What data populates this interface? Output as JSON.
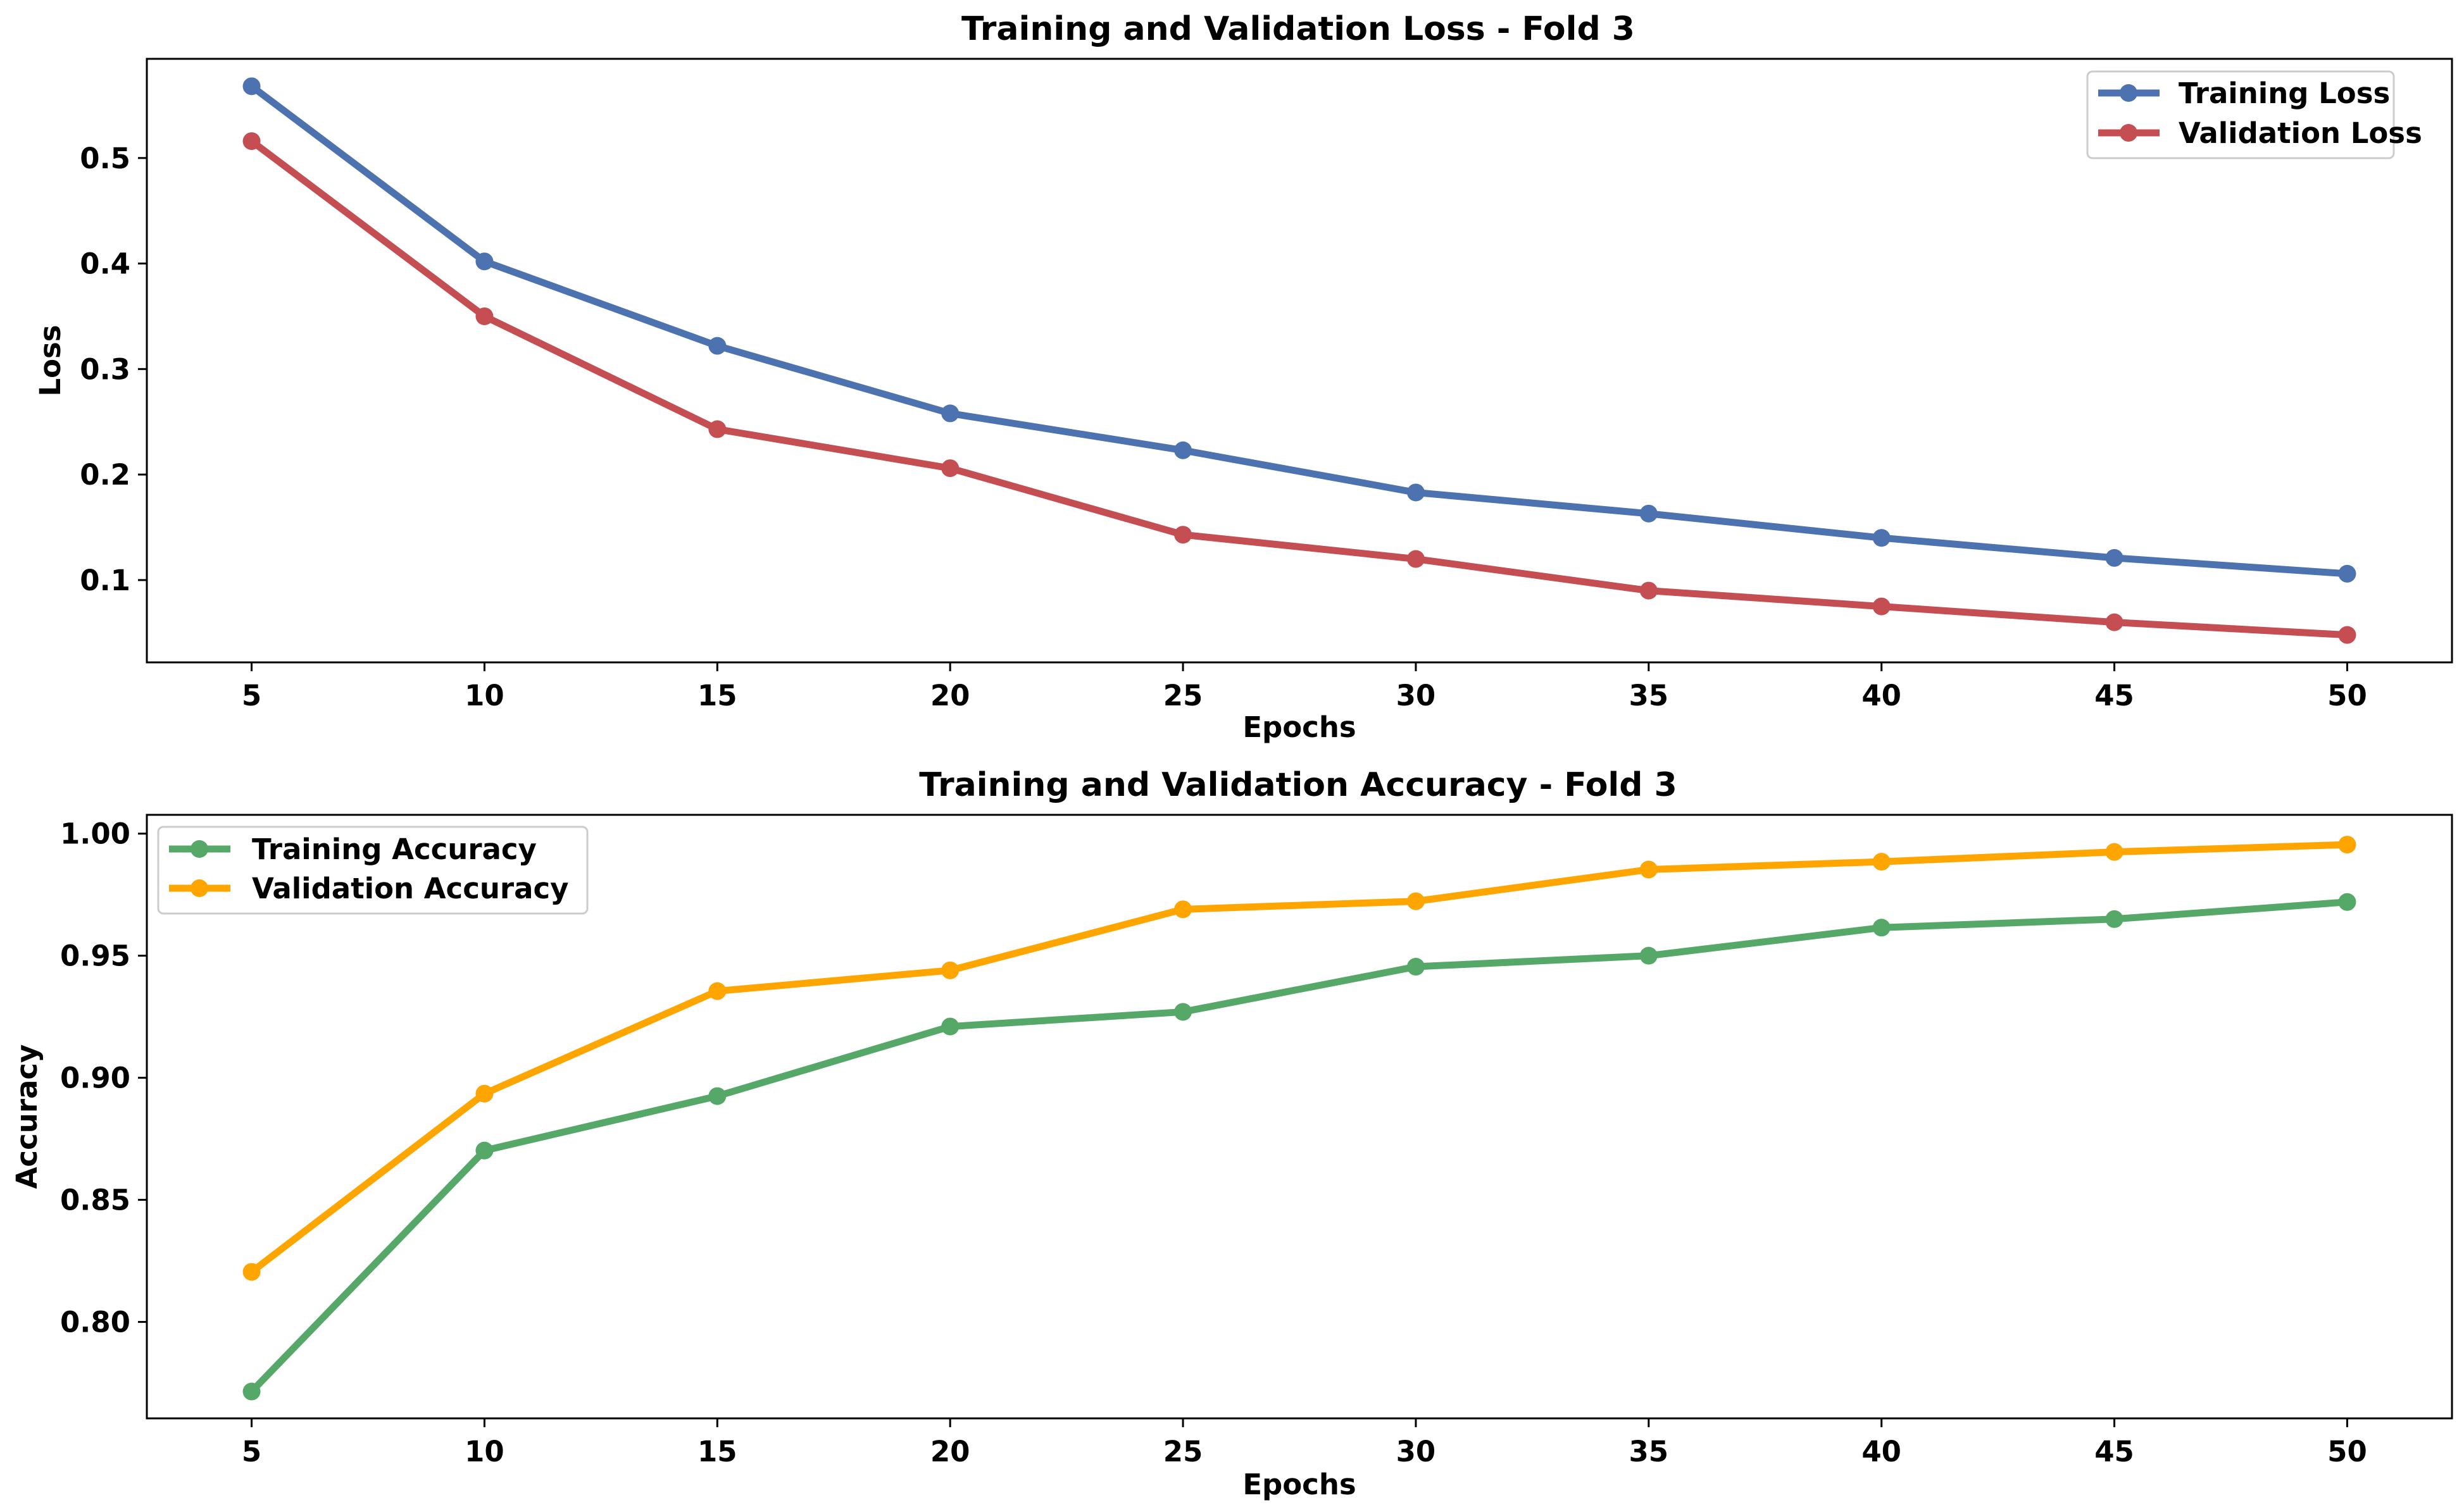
{
  "chart_data": [
    {
      "type": "line",
      "title": "Training and Validation Loss - Fold 3",
      "xlabel": "Epochs",
      "ylabel": "Loss",
      "x": [
        5,
        10,
        15,
        20,
        25,
        30,
        35,
        40,
        45,
        50
      ],
      "xticks": [
        "5",
        "10",
        "15",
        "20",
        "25",
        "30",
        "35",
        "40",
        "45",
        "50"
      ],
      "xlim": [
        2.75,
        52.25
      ],
      "ylim": [
        0.022,
        0.594
      ],
      "yticks": [
        0.1,
        0.2,
        0.3,
        0.4,
        0.5
      ],
      "ytick_labels": [
        "0.1",
        "0.2",
        "0.3",
        "0.4",
        "0.5"
      ],
      "legend_position": "top-right",
      "grid": false,
      "series": [
        {
          "name": "Training Loss",
          "color": "#4c72b0",
          "values": [
            0.568,
            0.402,
            0.322,
            0.258,
            0.223,
            0.183,
            0.163,
            0.14,
            0.121,
            0.106
          ]
        },
        {
          "name": "Validation Loss",
          "color": "#c44e52",
          "values": [
            0.516,
            0.35,
            0.243,
            0.206,
            0.143,
            0.12,
            0.09,
            0.075,
            0.06,
            0.048
          ]
        }
      ]
    },
    {
      "type": "line",
      "title": "Training and Validation Accuracy - Fold 3",
      "xlabel": "Epochs",
      "ylabel": "Accuracy",
      "x": [
        5,
        10,
        15,
        20,
        25,
        30,
        35,
        40,
        45,
        50
      ],
      "xticks": [
        "5",
        "10",
        "15",
        "20",
        "25",
        "30",
        "35",
        "40",
        "45",
        "50"
      ],
      "xlim": [
        2.75,
        52.25
      ],
      "ylim": [
        0.7605,
        1.0077
      ],
      "yticks": [
        0.8,
        0.85,
        0.9,
        0.95,
        1.0
      ],
      "ytick_labels": [
        "0.80",
        "0.85",
        "0.90",
        "0.95",
        "1.00"
      ],
      "legend_position": "top-left",
      "grid": false,
      "series": [
        {
          "name": "Training Accuracy",
          "color": "#55a868",
          "values": [
            0.7715,
            0.8702,
            0.8925,
            0.921,
            0.927,
            0.9455,
            0.95,
            0.9615,
            0.965,
            0.972
          ]
        },
        {
          "name": "Validation Accuracy",
          "color": "#ffa500",
          "values": [
            0.8205,
            0.8935,
            0.9355,
            0.944,
            0.969,
            0.9723,
            0.9853,
            0.9885,
            0.9925,
            0.9955
          ]
        }
      ]
    }
  ]
}
